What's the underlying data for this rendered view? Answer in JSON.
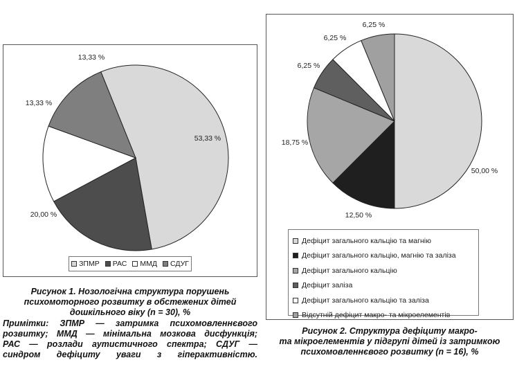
{
  "chart_data": [
    {
      "type": "pie",
      "labels": [
        "ЗПМР",
        "РАС",
        "ММД",
        "СДУГ"
      ],
      "values": [
        53.33,
        20.0,
        13.33,
        13.33
      ],
      "value_labels": [
        "53,33 %",
        "20,00 %",
        "13,33 %",
        "13,33 %"
      ],
      "colors": [
        "#d9d9d9",
        "#4d4d4d",
        "#ffffff",
        "#7f7f7f"
      ],
      "legend_position": "bottom"
    },
    {
      "type": "pie",
      "labels": [
        "Дефіцит загального кальцію та магнію",
        "Дефіцит загального кальцію, магнію та заліза",
        "Дефіцит загального кальцію",
        "Дефіцит заліза",
        "Дефіцит загального кальцію та заліза",
        "Відсутній дефіцит макро- та мікроелементів"
      ],
      "values": [
        50.0,
        12.5,
        18.75,
        6.25,
        6.25,
        6.25
      ],
      "value_labels": [
        "50,00 %",
        "12,50 %",
        "18,75 %",
        "6,25 %",
        "6,25 %",
        "6,25 %"
      ],
      "colors": [
        "#d9d9d9",
        "#1f1f1f",
        "#a6a6a6",
        "#5f5f5f",
        "#ffffff",
        "#a0a0a0"
      ],
      "legend_position": "bottom"
    }
  ],
  "captions": {
    "figure1": {
      "title_line1": "Рисунок 1. Нозологічна структура порушень",
      "title_line2": "психомоторного розвитку в обстежених дітей",
      "title_line3": "дошкільного віку (n = 30), %",
      "notes_line1": "Примітки: ЗПМР — затримка психомовленнєвого",
      "notes_line2": "розвитку; ММД — мінімальна мозкова дисфункція;",
      "notes_line3": "РАС — розлади аутистичного спектра; СДУГ —",
      "notes_line4": "синдром дефіциту уваги з гіперактивністю."
    },
    "figure2": {
      "title_line1": "Рисунок 2. Структура дефіциту макро-",
      "title_line2": "та мікроелементів у підгрупі дітей із затримкою",
      "title_line3": "психомовленнєвого розвитку (n = 16), %"
    }
  }
}
